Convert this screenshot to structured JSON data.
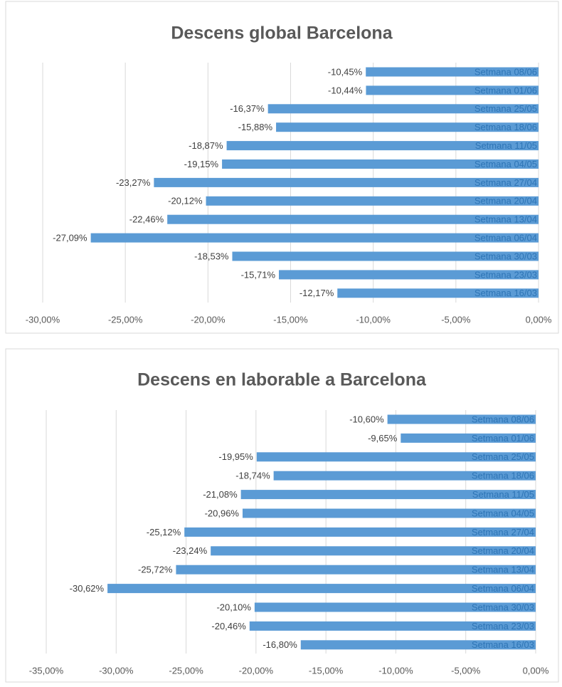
{
  "chart_data": [
    {
      "type": "bar",
      "orientation": "horizontal",
      "title": "Descens global Barcelona",
      "categories": [
        "Setmana 08/06",
        "Setmana 01/06",
        "Setmana 25/05",
        "Setmana 18/06",
        "Setmana 11/05",
        "Setmana 04/05",
        "Setmana 27/04",
        "Setmana 20/04",
        "Setmana 13/04",
        "Setmana 06/04",
        "Setmana 30/03",
        "Setmana 23/03",
        "Setmana 16/03"
      ],
      "values": [
        -10.45,
        -10.44,
        -16.37,
        -15.88,
        -18.87,
        -19.15,
        -23.27,
        -20.12,
        -22.46,
        -27.09,
        -18.53,
        -15.71,
        -12.17
      ],
      "value_labels": [
        "-10,45%",
        "-10,44%",
        "-16,37%",
        "-15,88%",
        "-18,87%",
        "-19,15%",
        "-23,27%",
        "-20,12%",
        "-22,46%",
        "-27,09%",
        "-18,53%",
        "-15,71%",
        "-12,17%"
      ],
      "color": "#5b9bd5",
      "xlim": [
        -30,
        0
      ],
      "xticks": [
        {
          "value": -30,
          "label": "-30,00%"
        },
        {
          "value": -25,
          "label": "-25,00%"
        },
        {
          "value": -20,
          "label": "-20,00%"
        },
        {
          "value": -15,
          "label": "-15,00%"
        },
        {
          "value": -10,
          "label": "-10,00%"
        },
        {
          "value": -5,
          "label": "-5,00%"
        },
        {
          "value": 0,
          "label": "0,00%"
        }
      ],
      "grid": true
    },
    {
      "type": "bar",
      "orientation": "horizontal",
      "title": "Descens en laborable a Barcelona",
      "categories": [
        "Setmana 08/06",
        "Setmana 01/06",
        "Setmana 25/05",
        "Setmana 18/06",
        "Setmana 11/05",
        "Setmana 04/05",
        "Setmana 27/04",
        "Setmana 20/04",
        "Setmana 13/04",
        "Setmana 06/04",
        "Setmana 30/03",
        "Setmana 23/03",
        "Setmana 16/03"
      ],
      "values": [
        -10.6,
        -9.65,
        -19.95,
        -18.74,
        -21.08,
        -20.96,
        -25.12,
        -23.24,
        -25.72,
        -30.62,
        -20.1,
        -20.46,
        -16.8
      ],
      "value_labels": [
        "-10,60%",
        "-9,65%",
        "-19,95%",
        "-18,74%",
        "-21,08%",
        "-20,96%",
        "-25,12%",
        "-23,24%",
        "-25,72%",
        "-30,62%",
        "-20,10%",
        "-20,46%",
        "-16,80%"
      ],
      "color": "#5b9bd5",
      "xlim": [
        -35,
        0
      ],
      "xticks": [
        {
          "value": -35,
          "label": "-35,00%"
        },
        {
          "value": -30,
          "label": "-30,00%"
        },
        {
          "value": -25,
          "label": "-25,00%"
        },
        {
          "value": -20,
          "label": "-20,00%"
        },
        {
          "value": -15,
          "label": "-15,00%"
        },
        {
          "value": -10,
          "label": "-10,00%"
        },
        {
          "value": -5,
          "label": "-5,00%"
        },
        {
          "value": 0,
          "label": "0,00%"
        }
      ],
      "grid": true
    }
  ]
}
